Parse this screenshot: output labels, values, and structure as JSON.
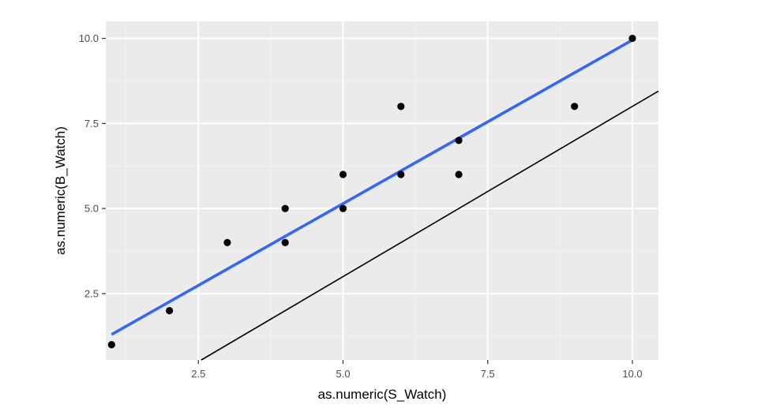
{
  "chart_data": {
    "type": "scatter",
    "title": "",
    "xlabel": "as.numeric(S_Watch)",
    "ylabel": "as.numeric(B_Watch)",
    "xlim": [
      0.9,
      10.45
    ],
    "ylim": [
      0.55,
      10.5
    ],
    "x_ticks": [
      2.5,
      5.0,
      7.5,
      10.0
    ],
    "x_tick_labels": [
      "2.5",
      "5.0",
      "7.5",
      "10.0"
    ],
    "y_ticks": [
      2.5,
      5.0,
      7.5,
      10.0
    ],
    "y_tick_labels": [
      "2.5",
      "5.0",
      "7.5",
      "10.0"
    ],
    "grid": true,
    "points": [
      {
        "x": 1,
        "y": 1
      },
      {
        "x": 2,
        "y": 2
      },
      {
        "x": 3,
        "y": 4
      },
      {
        "x": 4,
        "y": 5
      },
      {
        "x": 4,
        "y": 4
      },
      {
        "x": 5,
        "y": 6
      },
      {
        "x": 5,
        "y": 5
      },
      {
        "x": 6,
        "y": 8
      },
      {
        "x": 6,
        "y": 6
      },
      {
        "x": 7,
        "y": 7
      },
      {
        "x": 7,
        "y": 6
      },
      {
        "x": 9,
        "y": 8
      },
      {
        "x": 10,
        "y": 10
      }
    ],
    "fit_line": {
      "x": [
        1,
        10
      ],
      "y": [
        1.3,
        9.95
      ],
      "color": "#3366FF"
    },
    "reference_line": {
      "intercept": -2,
      "slope": 1,
      "color": "#000000"
    },
    "colors": {
      "panel_background": "#EBEBEB",
      "grid_major": "#FFFFFF",
      "grid_minor": "#F4F4F4",
      "points": "#000000"
    }
  }
}
